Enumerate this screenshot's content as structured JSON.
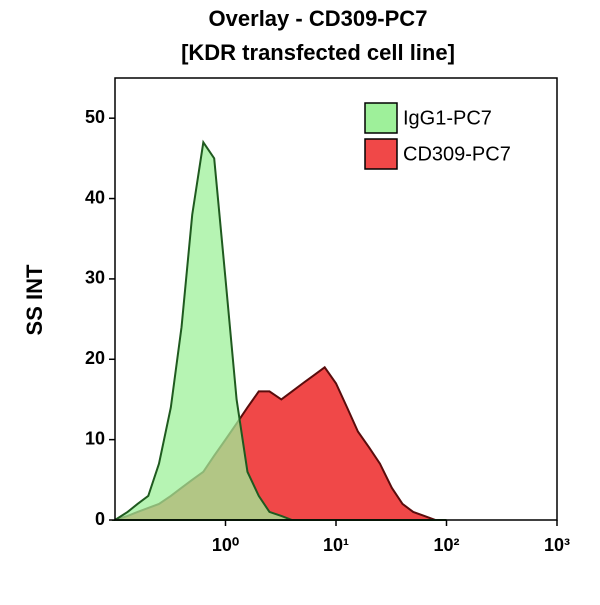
{
  "chart_data": {
    "type": "area",
    "title": "Overlay - CD309-PC7",
    "subtitle": "[KDR transfected cell line]",
    "y_label": "SS INT",
    "xscale": "log",
    "xlim": [
      0.1,
      1000
    ],
    "xticks": [
      {
        "value": 1,
        "label": "10⁰"
      },
      {
        "value": 10,
        "label": "10¹"
      },
      {
        "value": 100,
        "label": "10²"
      },
      {
        "value": 1000,
        "label": "10³"
      }
    ],
    "ylim": [
      0,
      55
    ],
    "yticks": [
      0,
      10,
      20,
      30,
      40,
      50
    ],
    "grid": false,
    "legend": "upper right",
    "x": [
      0.1,
      0.13,
      0.16,
      0.2,
      0.25,
      0.32,
      0.4,
      0.5,
      0.63,
      0.79,
      1,
      1.26,
      1.58,
      2,
      2.5,
      3.2,
      4,
      5,
      6.3,
      7.9,
      10,
      12.6,
      15.8,
      20,
      25,
      32,
      40,
      50,
      63,
      79,
      100
    ],
    "series": [
      {
        "name": "IgG1-PC7",
        "color": "#9ef09a",
        "edge": "#1f5a1f",
        "opacity": 0.75,
        "values": [
          0,
          1,
          2,
          3,
          7,
          14,
          24,
          38,
          47,
          45,
          30,
          15,
          6,
          3,
          1,
          0.5,
          0,
          0,
          0,
          0,
          0,
          0,
          0,
          0,
          0,
          0,
          0,
          0,
          0,
          0,
          0
        ]
      },
      {
        "name": "CD309-PC7",
        "color": "#f04848",
        "edge": "#5a0c0c",
        "opacity": 1,
        "values": [
          0,
          0.5,
          1,
          1.5,
          2,
          3,
          4,
          5,
          6,
          8,
          10,
          12,
          14,
          16,
          16,
          15,
          16,
          17,
          18,
          19,
          17,
          14,
          11,
          9,
          7,
          4,
          2,
          1,
          0.5,
          0,
          0
        ]
      }
    ]
  }
}
